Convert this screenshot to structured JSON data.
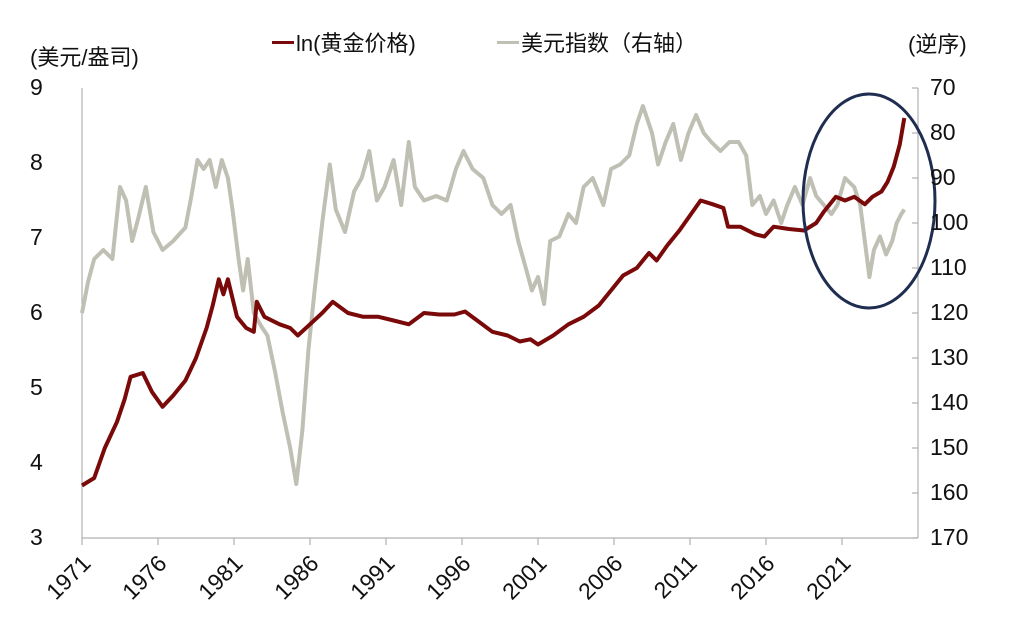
{
  "chart_data": {
    "type": "line",
    "title": "",
    "left_axis": {
      "label": "(美元/盎司)",
      "min": 3,
      "max": 9,
      "ticks": [
        9,
        8,
        7,
        6,
        5,
        4,
        3
      ]
    },
    "right_axis": {
      "label": "(逆序)",
      "min": 70,
      "max": 170,
      "inverted": true,
      "ticks": [
        70,
        80,
        90,
        100,
        110,
        120,
        130,
        140,
        150,
        160,
        170
      ]
    },
    "x_axis": {
      "ticks": [
        "1971",
        "1976",
        "1981",
        "1986",
        "1991",
        "1996",
        "2001",
        "2006",
        "2011",
        "2016",
        "2021"
      ],
      "start": 1971,
      "end": 2025.1
    },
    "legend": [
      {
        "name": "ln(黄金价格)",
        "color": "#7a0a0a",
        "axis": "left"
      },
      {
        "name": "美元指数（右轴）",
        "color": "#bfbfb4",
        "axis": "right"
      }
    ],
    "annotation": {
      "type": "ellipse",
      "color": "#1f2d50",
      "note": "highlights 2019-2025 divergence"
    },
    "series": [
      {
        "name": "ln(黄金价格)",
        "axis": "left",
        "points": [
          [
            1971,
            3.7
          ],
          [
            1971.8,
            3.8
          ],
          [
            1972.5,
            4.2
          ],
          [
            1973.3,
            4.55
          ],
          [
            1973.8,
            4.85
          ],
          [
            1974.2,
            5.15
          ],
          [
            1975,
            5.2
          ],
          [
            1975.6,
            4.95
          ],
          [
            1976.3,
            4.75
          ],
          [
            1977,
            4.9
          ],
          [
            1977.8,
            5.1
          ],
          [
            1978.5,
            5.4
          ],
          [
            1979.2,
            5.8
          ],
          [
            1979.6,
            6.1
          ],
          [
            1980,
            6.45
          ],
          [
            1980.3,
            6.25
          ],
          [
            1980.6,
            6.45
          ],
          [
            1981.2,
            5.95
          ],
          [
            1981.8,
            5.8
          ],
          [
            1982.3,
            5.75
          ],
          [
            1982.5,
            6.15
          ],
          [
            1983,
            5.95
          ],
          [
            1984,
            5.85
          ],
          [
            1984.7,
            5.8
          ],
          [
            1985.2,
            5.7
          ],
          [
            1986,
            5.85
          ],
          [
            1986.8,
            6.0
          ],
          [
            1987.5,
            6.15
          ],
          [
            1988.5,
            6.0
          ],
          [
            1989.5,
            5.95
          ],
          [
            1990.5,
            5.95
          ],
          [
            1991.5,
            5.9
          ],
          [
            1992.5,
            5.85
          ],
          [
            1993.5,
            6.0
          ],
          [
            1994.5,
            5.98
          ],
          [
            1995.5,
            5.98
          ],
          [
            1996.2,
            6.02
          ],
          [
            1997,
            5.9
          ],
          [
            1998,
            5.75
          ],
          [
            1999,
            5.7
          ],
          [
            1999.8,
            5.62
          ],
          [
            2000.5,
            5.65
          ],
          [
            2001,
            5.58
          ],
          [
            2002,
            5.7
          ],
          [
            2003,
            5.85
          ],
          [
            2004,
            5.95
          ],
          [
            2005,
            6.1
          ],
          [
            2006,
            6.35
          ],
          [
            2006.6,
            6.5
          ],
          [
            2007.5,
            6.6
          ],
          [
            2008.3,
            6.8
          ],
          [
            2008.8,
            6.7
          ],
          [
            2009.5,
            6.9
          ],
          [
            2010.3,
            7.1
          ],
          [
            2011,
            7.3
          ],
          [
            2011.7,
            7.5
          ],
          [
            2012.5,
            7.45
          ],
          [
            2013.2,
            7.4
          ],
          [
            2013.5,
            7.15
          ],
          [
            2014.3,
            7.15
          ],
          [
            2015.3,
            7.05
          ],
          [
            2015.9,
            7.02
          ],
          [
            2016.5,
            7.15
          ],
          [
            2017.5,
            7.12
          ],
          [
            2018.5,
            7.1
          ],
          [
            2019.3,
            7.2
          ],
          [
            2019.8,
            7.35
          ],
          [
            2020.6,
            7.55
          ],
          [
            2021.2,
            7.5
          ],
          [
            2021.8,
            7.55
          ],
          [
            2022.5,
            7.45
          ],
          [
            2023,
            7.55
          ],
          [
            2023.6,
            7.62
          ],
          [
            2024,
            7.75
          ],
          [
            2024.4,
            7.95
          ],
          [
            2024.8,
            8.25
          ],
          [
            2025.1,
            8.6
          ]
        ]
      },
      {
        "name": "美元指数（右轴）",
        "axis": "right",
        "points": [
          [
            1971,
            120
          ],
          [
            1971.4,
            113
          ],
          [
            1971.8,
            108
          ],
          [
            1972.4,
            106
          ],
          [
            1973,
            108
          ],
          [
            1973.5,
            92
          ],
          [
            1973.9,
            95
          ],
          [
            1974.3,
            104
          ],
          [
            1974.7,
            99
          ],
          [
            1975.2,
            92
          ],
          [
            1975.7,
            102
          ],
          [
            1976.3,
            106
          ],
          [
            1977,
            104
          ],
          [
            1977.8,
            101
          ],
          [
            1978.2,
            94
          ],
          [
            1978.6,
            86
          ],
          [
            1979,
            88
          ],
          [
            1979.4,
            86
          ],
          [
            1979.8,
            92
          ],
          [
            1980.2,
            86
          ],
          [
            1980.6,
            90
          ],
          [
            1980.9,
            97
          ],
          [
            1981.3,
            108
          ],
          [
            1981.6,
            115
          ],
          [
            1981.9,
            108
          ],
          [
            1982.3,
            120
          ],
          [
            1982.8,
            123
          ],
          [
            1983.2,
            125
          ],
          [
            1983.7,
            133
          ],
          [
            1984.2,
            142
          ],
          [
            1984.7,
            150
          ],
          [
            1985.1,
            158
          ],
          [
            1985.5,
            146
          ],
          [
            1985.9,
            128
          ],
          [
            1986.3,
            115
          ],
          [
            1986.8,
            100
          ],
          [
            1987.3,
            87
          ],
          [
            1987.7,
            97
          ],
          [
            1988.3,
            102
          ],
          [
            1988.9,
            93
          ],
          [
            1989.4,
            90
          ],
          [
            1989.9,
            84
          ],
          [
            1990.4,
            95
          ],
          [
            1990.9,
            92
          ],
          [
            1991.5,
            86
          ],
          [
            1992,
            96
          ],
          [
            1992.5,
            82
          ],
          [
            1992.9,
            92
          ],
          [
            1993.5,
            95
          ],
          [
            1994.3,
            94
          ],
          [
            1995,
            95
          ],
          [
            1995.6,
            88
          ],
          [
            1996.1,
            84
          ],
          [
            1996.7,
            88
          ],
          [
            1997.4,
            90
          ],
          [
            1998,
            96
          ],
          [
            1998.6,
            98
          ],
          [
            1999.2,
            96
          ],
          [
            1999.7,
            104
          ],
          [
            2000.2,
            110
          ],
          [
            2000.6,
            115
          ],
          [
            2001,
            112
          ],
          [
            2001.4,
            118
          ],
          [
            2001.8,
            104
          ],
          [
            2002.4,
            103
          ],
          [
            2003,
            98
          ],
          [
            2003.5,
            100
          ],
          [
            2004,
            92
          ],
          [
            2004.6,
            90
          ],
          [
            2005.3,
            96
          ],
          [
            2005.8,
            88
          ],
          [
            2006.4,
            87
          ],
          [
            2007,
            85
          ],
          [
            2007.5,
            78
          ],
          [
            2007.9,
            74
          ],
          [
            2008.5,
            80
          ],
          [
            2008.9,
            87
          ],
          [
            2009.4,
            82
          ],
          [
            2009.9,
            78
          ],
          [
            2010.4,
            86
          ],
          [
            2010.9,
            80
          ],
          [
            2011.4,
            76
          ],
          [
            2011.9,
            80
          ],
          [
            2012.4,
            82
          ],
          [
            2013,
            84
          ],
          [
            2013.6,
            82
          ],
          [
            2014.2,
            82
          ],
          [
            2014.7,
            85
          ],
          [
            2015.1,
            96
          ],
          [
            2015.6,
            94
          ],
          [
            2016,
            98
          ],
          [
            2016.5,
            95
          ],
          [
            2017,
            100
          ],
          [
            2017.4,
            96
          ],
          [
            2017.9,
            92
          ],
          [
            2018.4,
            96
          ],
          [
            2018.9,
            90
          ],
          [
            2019.3,
            94
          ],
          [
            2019.8,
            96
          ],
          [
            2020.3,
            98
          ],
          [
            2020.7,
            96
          ],
          [
            2021.2,
            90
          ],
          [
            2021.8,
            92
          ],
          [
            2022.2,
            96
          ],
          [
            2022.5,
            104
          ],
          [
            2022.8,
            112
          ],
          [
            2023.1,
            106
          ],
          [
            2023.5,
            103
          ],
          [
            2023.9,
            107
          ],
          [
            2024.3,
            104
          ],
          [
            2024.6,
            100
          ],
          [
            2024.9,
            98
          ],
          [
            2025.1,
            97
          ]
        ]
      }
    ]
  },
  "labels": {
    "left_unit": "(美元/盎司)",
    "right_unit": "(逆序)",
    "legend_gold": "ln(黄金价格)",
    "legend_usd": "美元指数（右轴）"
  },
  "colors": {
    "gold": "#7a0a0a",
    "usd": "#bfbfb4",
    "ellipse": "#1f2d50",
    "axis": "#b0b0b0"
  }
}
